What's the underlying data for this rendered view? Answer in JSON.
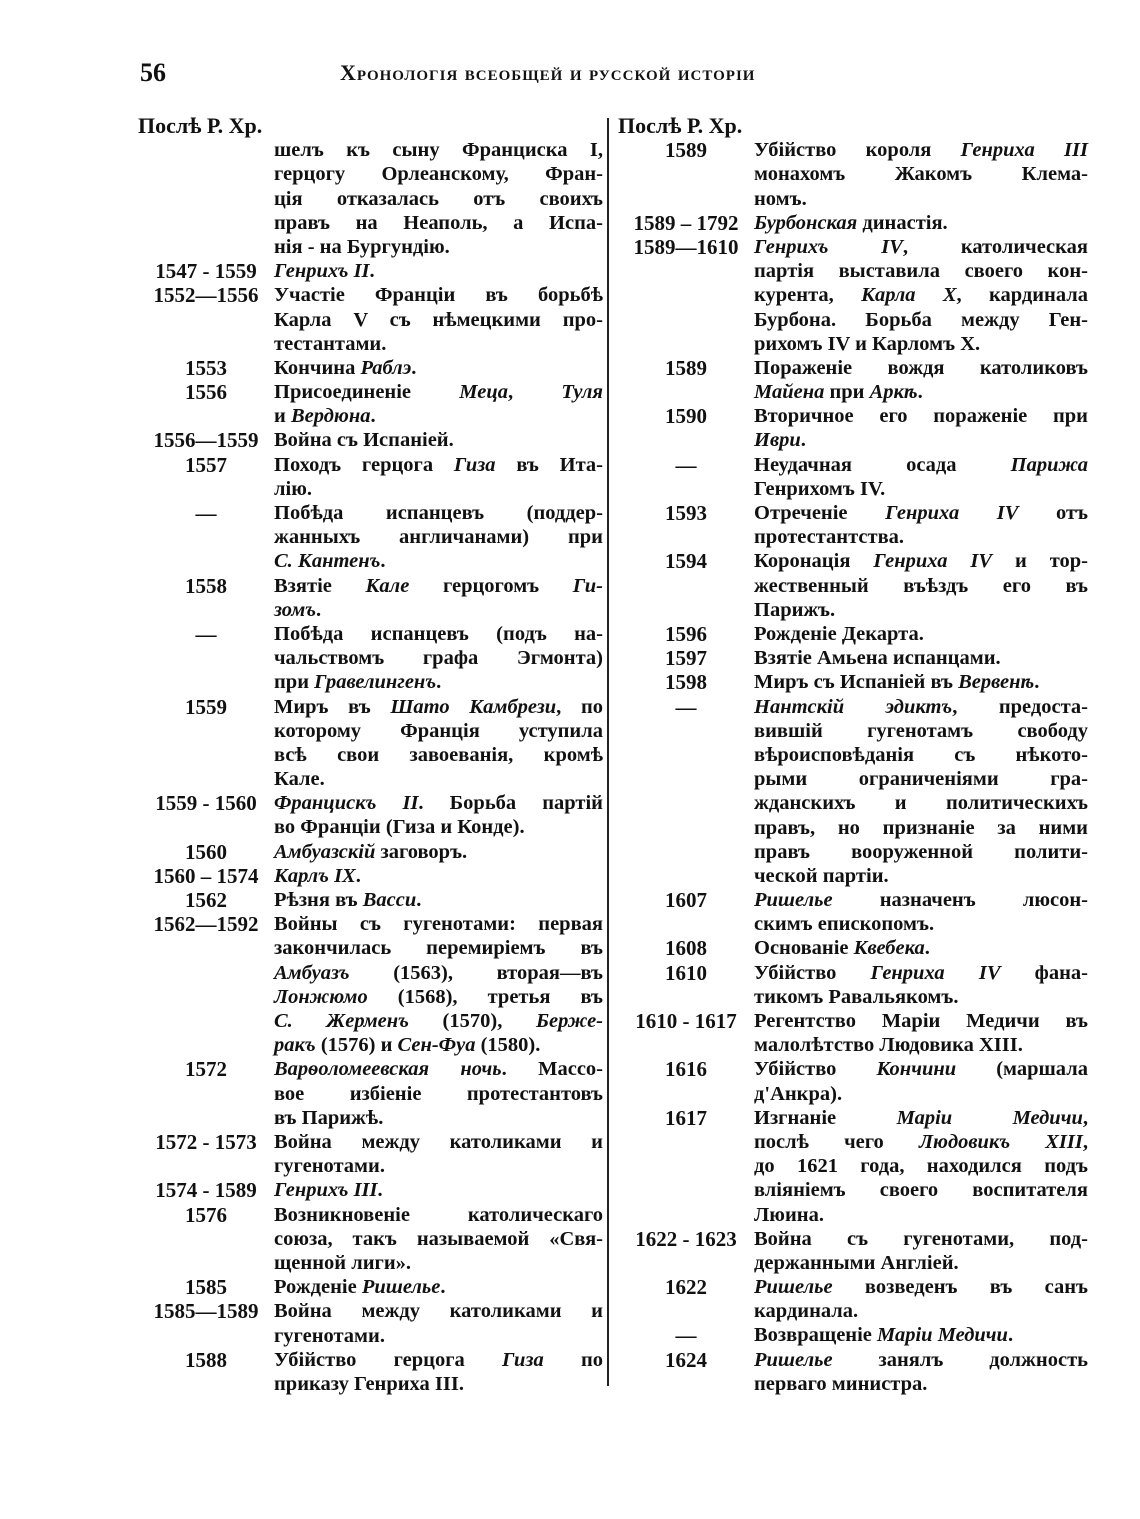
{
  "page": {
    "number": "56",
    "title": "Хронологія всеобщей и русской исторіи"
  },
  "left": {
    "header": "Послѣ Р. Хр.",
    "entries": [
      {
        "date": "",
        "lines": [
          "шелъ къ сыну Франциска I,",
          "герцогу Орлеанскому, Фран-",
          "ція отказалась отъ своихъ",
          "правъ на Неаполь, а Испа-",
          "нія - на Бургундію."
        ]
      },
      {
        "date": "1547 - 1559",
        "lines": [
          [
            "",
            "Генрихъ II",
            "."
          ]
        ]
      },
      {
        "date": "1552—1556",
        "lines": [
          "Участіе Франціи въ борьбѣ",
          "Карла V съ нѣмецкими про-",
          "тестантами."
        ]
      },
      {
        "date": "1553",
        "lines": [
          [
            "Кончина ",
            "Раблэ",
            "."
          ]
        ]
      },
      {
        "date": "1556",
        "lines": [
          [
            "Присоединеніе ",
            "Меца",
            ", ",
            "Туля"
          ],
          [
            "и ",
            "Вердюна",
            "."
          ]
        ]
      },
      {
        "date": "1556—1559",
        "lines": [
          "Война съ Испаніей."
        ]
      },
      {
        "date": "1557",
        "lines": [
          [
            "Походъ герцога ",
            "Гиза",
            " въ Ита-"
          ],
          "лію."
        ]
      },
      {
        "date": "—",
        "lines": [
          "Побѣда испанцевъ (поддер-",
          "жанныхъ англичанами) при",
          [
            "",
            "С. Кантенъ",
            "."
          ]
        ]
      },
      {
        "date": "1558",
        "lines": [
          [
            "Взятіе ",
            "Кале",
            " герцогомъ ",
            "Ги-"
          ],
          [
            "",
            "зомъ",
            "."
          ]
        ]
      },
      {
        "date": "—",
        "lines": [
          "Побѣда испанцевъ (подъ на-",
          "чальствомъ графа Эгмонта)",
          [
            "при ",
            "Гравелингенъ",
            "."
          ]
        ]
      },
      {
        "date": "1559",
        "lines": [
          [
            "Миръ въ ",
            "Шато Камбрези",
            ", по"
          ],
          "которому Франція уступила",
          "всѣ свои завоеванія, кромѣ",
          "Кале."
        ]
      },
      {
        "date": "1559 - 1560",
        "lines": [
          [
            "",
            "Францискъ II",
            ". Борьба партій"
          ],
          "во Франціи (Гиза и Конде)."
        ]
      },
      {
        "date": "1560",
        "lines": [
          [
            "",
            "Амбуазскій",
            " заговоръ."
          ]
        ]
      },
      {
        "date": "1560 – 1574",
        "lines": [
          [
            "",
            "Карлъ IX",
            "."
          ]
        ]
      },
      {
        "date": "1562",
        "lines": [
          [
            "Рѣзня въ ",
            "Васси",
            "."
          ]
        ]
      },
      {
        "date": "1562—1592",
        "lines": [
          "Войны съ гугенотами: первая",
          "закончилась перемиріемъ въ",
          [
            "",
            "Амбуазъ",
            " (1563), вторая—въ"
          ],
          [
            "",
            "Лонжюмо",
            " (1568), третья въ"
          ],
          [
            "",
            "С. Жерменъ",
            " (1570), ",
            "Берже-"
          ],
          [
            "",
            "ракъ",
            " (1576) и ",
            "Сен-Фуа",
            " (1580)."
          ]
        ]
      },
      {
        "date": "1572",
        "lines": [
          [
            "",
            "Варѳоломеевская ночь",
            ". Массо-"
          ],
          "вое избіеніе протестантовъ",
          "въ Парижѣ."
        ]
      },
      {
        "date": "1572 - 1573",
        "lines": [
          "Война между католиками и",
          "гугенотами."
        ]
      },
      {
        "date": "1574 - 1589",
        "lines": [
          [
            "",
            "Генрихъ III",
            "."
          ]
        ]
      },
      {
        "date": "1576",
        "lines": [
          "Возникновеніе католическаго",
          "союза, такъ называемой «Свя-",
          "щенной лиги»."
        ]
      },
      {
        "date": "1585",
        "lines": [
          [
            "Рожденіе ",
            "Ришелье",
            "."
          ]
        ]
      },
      {
        "date": "1585—1589",
        "lines": [
          "Война между католиками и",
          "гугенотами."
        ]
      },
      {
        "date": "1588",
        "lines": [
          [
            "Убійство герцога ",
            "Гиза",
            " по"
          ],
          "приказу Генриха III."
        ]
      }
    ]
  },
  "right": {
    "header": "Послѣ Р. Хр.",
    "entries": [
      {
        "date": "1589",
        "lines": [
          [
            "Убійство короля ",
            "Генриха III"
          ],
          "монахомъ Жакомъ Клема-",
          "номъ."
        ]
      },
      {
        "date": "1589 – 1792",
        "lines": [
          [
            "",
            "Бурбонская",
            " династія."
          ]
        ]
      },
      {
        "date": "1589—1610",
        "lines": [
          [
            "",
            "Генрихъ IV",
            ", католическая"
          ],
          "партія выставила своего кон-",
          [
            "курента, ",
            "Карла X",
            ", кардинала"
          ],
          "Бурбона. Борьба между Ген-",
          "рихомъ IV и Карломъ X."
        ]
      },
      {
        "date": "1589",
        "lines": [
          "Пораженіе вождя католиковъ",
          [
            "",
            "Майена",
            " при ",
            "Аркѣ",
            "."
          ]
        ]
      },
      {
        "date": "1590",
        "lines": [
          "Вторичное его пораженіе при",
          [
            "",
            "Иври",
            "."
          ]
        ]
      },
      {
        "date": "—",
        "lines": [
          [
            "Неудачная осада ",
            "Парижа"
          ],
          "Генрихомъ IV."
        ]
      },
      {
        "date": "1593",
        "lines": [
          [
            "Отреченіе ",
            "Генриха IV",
            " отъ"
          ],
          "протестантства."
        ]
      },
      {
        "date": "1594",
        "lines": [
          [
            "Коронація ",
            "Генриха IV",
            " и тор-"
          ],
          "жественный въѣздъ его въ",
          "Парижъ."
        ]
      },
      {
        "date": "1596",
        "lines": [
          "Рожденіе Декарта."
        ]
      },
      {
        "date": "1597",
        "lines": [
          "Взятіе Амьена испанцами."
        ]
      },
      {
        "date": "1598",
        "lines": [
          [
            "Миръ съ Испаніей въ ",
            "Вервенѣ",
            "."
          ]
        ]
      },
      {
        "date": "—",
        "lines": [
          [
            "",
            "Нантскій эдиктъ",
            ", предоста-"
          ],
          "вившій гугенотамъ свободу",
          "вѣроисповѣданія съ нѣкото-",
          "рыми ограниченіями гра-",
          "жданскихъ и политическихъ",
          "правъ, но признаніе за ними",
          "правъ вооруженной полити-",
          "ческой партіи."
        ]
      },
      {
        "date": "1607",
        "lines": [
          [
            "",
            "Ришелье",
            " назначенъ люсон-"
          ],
          "скимъ епископомъ."
        ]
      },
      {
        "date": "1608",
        "lines": [
          [
            "Основаніе ",
            "Квебека",
            "."
          ]
        ]
      },
      {
        "date": "1610",
        "lines": [
          [
            "Убійство ",
            "Генриха IV",
            " фана-"
          ],
          "тикомъ Равальякомъ."
        ]
      },
      {
        "date": "1610 - 1617",
        "lines": [
          "Регентство Маріи Медичи въ",
          "малолѣтство Людовика XIII."
        ]
      },
      {
        "date": "1616",
        "lines": [
          [
            "Убійство ",
            "Кончини",
            " (маршала"
          ],
          "д'Анкра)."
        ]
      },
      {
        "date": "1617",
        "lines": [
          [
            "Изгнаніе ",
            "Маріи Медичи",
            ","
          ],
          [
            "послѣ чего ",
            "Людовикъ XIII",
            ","
          ],
          "до 1621 года, находился подъ",
          "вліяніемъ своего воспитателя",
          "Люина."
        ]
      },
      {
        "date": "1622 - 1623",
        "lines": [
          "Война съ гугенотами, под-",
          "держанными Англіей."
        ]
      },
      {
        "date": "1622",
        "lines": [
          [
            "",
            "Ришелье",
            " возведенъ въ санъ"
          ],
          "кардинала."
        ]
      },
      {
        "date": "—",
        "lines": [
          [
            "Возвращеніе ",
            "Маріи Медичи",
            "."
          ]
        ]
      },
      {
        "date": "1624",
        "lines": [
          [
            "",
            "Ришелье",
            " занялъ должность"
          ],
          "перваго министра."
        ]
      }
    ]
  }
}
